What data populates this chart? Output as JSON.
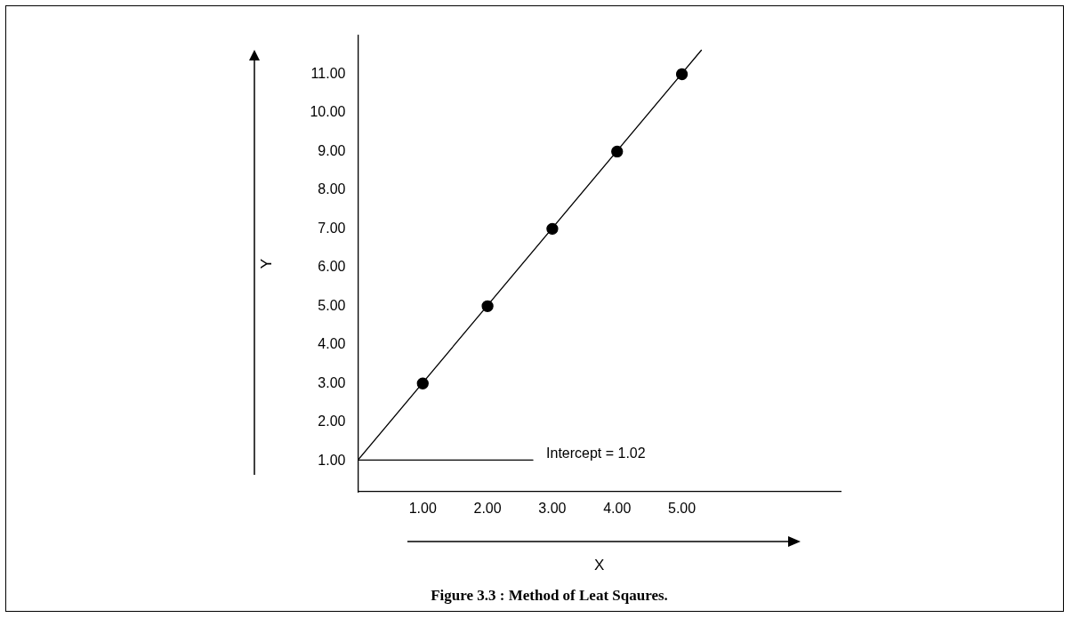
{
  "chart_data": {
    "type": "scatter",
    "title": "Figure 3.3 : Method of Leat Sqaures.",
    "xlabel": "X",
    "ylabel": "Y",
    "xlim": [
      0,
      7.45
    ],
    "ylim": [
      0.2,
      12
    ],
    "xticks": [
      {
        "value": 1,
        "label": "1.00"
      },
      {
        "value": 2,
        "label": "2.00"
      },
      {
        "value": 3,
        "label": "3.00"
      },
      {
        "value": 4,
        "label": "4.00"
      },
      {
        "value": 5,
        "label": "5.00"
      }
    ],
    "yticks": [
      {
        "value": 1,
        "label": "1.00"
      },
      {
        "value": 2,
        "label": "2.00"
      },
      {
        "value": 3,
        "label": "3.00"
      },
      {
        "value": 4,
        "label": "4.00"
      },
      {
        "value": 5,
        "label": "5.00"
      },
      {
        "value": 6,
        "label": "6.00"
      },
      {
        "value": 7,
        "label": "7.00"
      },
      {
        "value": 8,
        "label": "8.00"
      },
      {
        "value": 9,
        "label": "9.00"
      },
      {
        "value": 10,
        "label": "10.00"
      },
      {
        "value": 11,
        "label": "11.00"
      }
    ],
    "grid": false,
    "legend": false,
    "marker": "circle",
    "series": [
      {
        "type": "line",
        "marker": "none",
        "color": "#000000",
        "x": [
          0,
          5.3
        ],
        "values": [
          1.02,
          11.62
        ]
      },
      {
        "type": "line",
        "marker": "none",
        "color": "#000000",
        "x": [
          0,
          2.7
        ],
        "values": [
          1.02,
          1.02
        ]
      },
      {
        "color": "#000000",
        "x": [
          1,
          2,
          3,
          4,
          5
        ],
        "values": [
          3,
          5,
          7,
          9,
          11
        ]
      }
    ],
    "annotations": [
      "Intercept = 1.02"
    ]
  }
}
